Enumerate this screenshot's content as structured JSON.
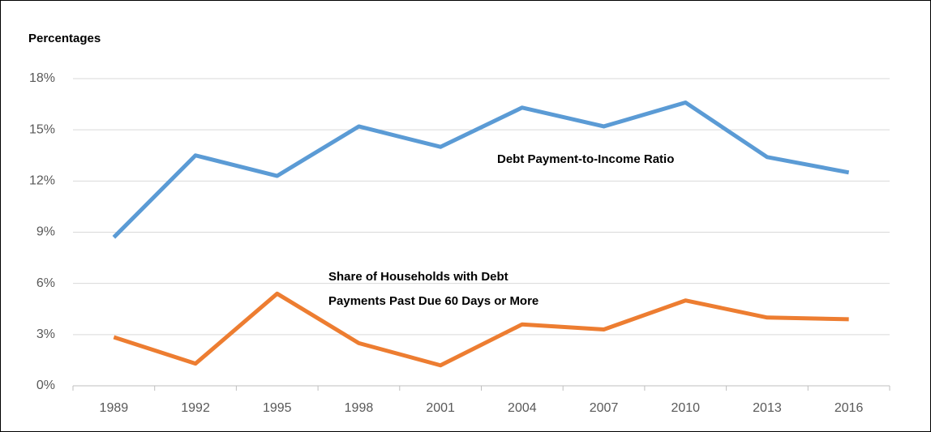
{
  "chart_data": {
    "type": "line",
    "y_axis_title": "Percentages",
    "categories": [
      "1989",
      "1992",
      "1995",
      "1998",
      "2001",
      "2004",
      "2007",
      "2010",
      "2013",
      "2016"
    ],
    "series": [
      {
        "color": "#5b9bd5",
        "values": [
          8.7,
          13.5,
          12.3,
          15.2,
          14.0,
          16.3,
          15.2,
          16.6,
          13.4,
          12.5
        ]
      },
      {
        "color": "#ed7d31",
        "values": [
          2.85,
          1.3,
          5.4,
          2.5,
          1.2,
          3.6,
          3.3,
          5.0,
          4.0,
          3.9
        ]
      }
    ],
    "annotations": [
      {
        "lines": [
          "Debt Payment-to-Income Ratio"
        ]
      },
      {
        "lines": [
          "Share of Households with Debt",
          "Payments Past Due 60 Days or More"
        ]
      }
    ],
    "ylim": [
      0,
      18
    ],
    "yticks": [
      {
        "value": 0,
        "label": "0%"
      },
      {
        "value": 3,
        "label": "3%"
      },
      {
        "value": 6,
        "label": "6%"
      },
      {
        "value": 9,
        "label": "9%"
      },
      {
        "value": 12,
        "label": "12%"
      },
      {
        "value": 15,
        "label": "15%"
      },
      {
        "value": 18,
        "label": "18%"
      }
    ],
    "grid": true
  }
}
